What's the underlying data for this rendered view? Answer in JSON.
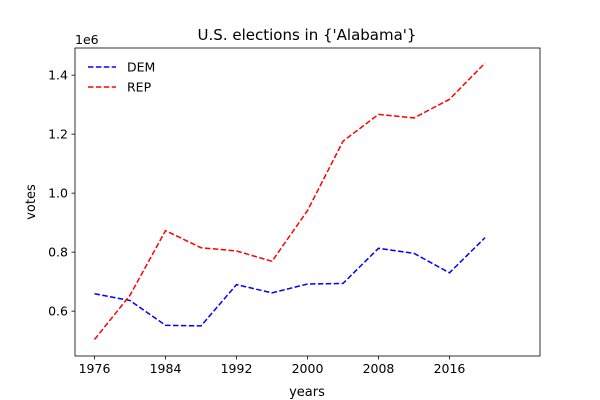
{
  "chart_data": {
    "type": "line",
    "title": "U.S. elections in {'Alabama'}",
    "xlabel": "years",
    "ylabel": "votes",
    "y_offset_label": "1e6",
    "x": [
      1976,
      1980,
      1984,
      1988,
      1992,
      1996,
      2000,
      2004,
      2008,
      2012,
      2016,
      2020
    ],
    "x_ticks": [
      1976,
      1984,
      1992,
      2000,
      2008,
      2016
    ],
    "y_ticks": [
      0.6,
      0.8,
      1.0,
      1.2,
      1.4
    ],
    "y_tick_labels": [
      "0.6",
      "0.8",
      "1.0",
      "1.2",
      "1.4"
    ],
    "y_scale": 1000000,
    "xlim": [
      1973.8,
      2026.2
    ],
    "ylim": [
      448000,
      1492000
    ],
    "grid": false,
    "legend_position": "top-left",
    "series": [
      {
        "name": "DEM",
        "color": "#0000ff",
        "line_style": "dashed",
        "values": [
          659000,
          636000,
          552000,
          550000,
          690000,
          662000,
          692000,
          694000,
          813000,
          796000,
          730000,
          849000
        ]
      },
      {
        "name": "REP",
        "color": "#ff0000",
        "line_style": "dashed",
        "values": [
          504000,
          654000,
          873000,
          815000,
          804000,
          769000,
          941000,
          1176000,
          1267000,
          1255000,
          1318000,
          1441000
        ]
      }
    ]
  }
}
